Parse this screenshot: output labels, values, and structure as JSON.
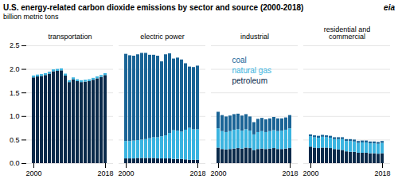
{
  "chart_data": {
    "type": "bar",
    "stacked": true,
    "title": "U.S. energy-related carbon dioxide emissions by sector and source (2000-2018)",
    "ylabel": "billion metric tons",
    "annotations": [
      "eia"
    ],
    "categories": [
      "2000",
      null,
      null,
      null,
      null,
      null,
      null,
      null,
      null,
      null,
      null,
      null,
      null,
      null,
      null,
      null,
      null,
      null,
      "2018"
    ],
    "ylim": [
      0,
      2.5
    ],
    "yticks": [
      {
        "value": 0.0,
        "label": "0.0"
      },
      0.5,
      {
        "value": 1.0,
        "label": "1.0"
      },
      1.5,
      {
        "value": 2.0,
        "label": "2.0"
      },
      2.5
    ],
    "grid": true,
    "panels": [
      {
        "title": "transportation",
        "series": [
          {
            "name": "petroleum",
            "color": "#0a2a4a",
            "values": [
              1.82,
              1.84,
              1.85,
              1.87,
              1.9,
              1.95,
              1.96,
              1.97,
              1.86,
              1.72,
              1.78,
              1.74,
              1.72,
              1.73,
              1.74,
              1.77,
              1.8,
              1.83,
              1.87
            ]
          },
          {
            "name": "natural gas",
            "color": "#3ab4e0",
            "values": [
              0.04,
              0.04,
              0.04,
              0.04,
              0.04,
              0.04,
              0.04,
              0.04,
              0.04,
              0.04,
              0.04,
              0.04,
              0.04,
              0.04,
              0.04,
              0.04,
              0.04,
              0.04,
              0.04
            ]
          },
          {
            "name": "coal",
            "color": "#1a6496",
            "values": [
              0.0,
              0.0,
              0.0,
              0.0,
              0.0,
              0.0,
              0.0,
              0.0,
              0.0,
              0.0,
              0.0,
              0.0,
              0.0,
              0.0,
              0.0,
              0.0,
              0.0,
              0.0,
              0.0
            ]
          }
        ]
      },
      {
        "title": "electric power",
        "series": [
          {
            "name": "petroleum",
            "color": "#0a2a4a",
            "values": [
              0.1,
              0.1,
              0.1,
              0.11,
              0.11,
              0.11,
              0.11,
              0.11,
              0.1,
              0.1,
              0.1,
              0.1,
              0.09,
              0.09,
              0.09,
              0.08,
              0.07,
              0.07,
              0.07
            ]
          },
          {
            "name": "natural gas",
            "color": "#3ab4e0",
            "values": [
              0.37,
              0.37,
              0.38,
              0.38,
              0.39,
              0.4,
              0.42,
              0.44,
              0.45,
              0.47,
              0.49,
              0.54,
              0.61,
              0.6,
              0.58,
              0.63,
              0.68,
              0.65,
              0.65
            ]
          },
          {
            "name": "coal",
            "color": "#1a6496",
            "values": [
              1.85,
              1.82,
              1.8,
              1.82,
              1.84,
              1.83,
              1.77,
              1.75,
              1.73,
              1.59,
              1.72,
              1.69,
              1.52,
              1.55,
              1.53,
              1.41,
              1.3,
              1.32,
              1.35
            ]
          }
        ]
      },
      {
        "title": "industrial",
        "series": [
          {
            "name": "petroleum",
            "color": "#0a2a4a",
            "values": [
              0.33,
              0.3,
              0.29,
              0.3,
              0.31,
              0.32,
              0.31,
              0.33,
              0.32,
              0.28,
              0.3,
              0.31,
              0.3,
              0.31,
              0.32,
              0.3,
              0.3,
              0.31,
              0.32
            ]
          },
          {
            "name": "natural gas",
            "color": "#3ab4e0",
            "values": [
              0.41,
              0.38,
              0.37,
              0.38,
              0.4,
              0.4,
              0.38,
              0.39,
              0.37,
              0.33,
              0.36,
              0.37,
              0.36,
              0.37,
              0.38,
              0.38,
              0.39,
              0.4,
              0.42
            ]
          },
          {
            "name": "coal",
            "color": "#1a6496",
            "values": [
              0.35,
              0.34,
              0.33,
              0.33,
              0.33,
              0.33,
              0.32,
              0.32,
              0.3,
              0.26,
              0.28,
              0.28,
              0.27,
              0.27,
              0.28,
              0.27,
              0.26,
              0.26,
              0.28
            ]
          }
        ]
      },
      {
        "title": "residential and\ncommercial",
        "series": [
          {
            "name": "petroleum",
            "color": "#0a2a4a",
            "values": [
              0.35,
              0.33,
              0.32,
              0.33,
              0.33,
              0.32,
              0.3,
              0.29,
              0.28,
              0.25,
              0.24,
              0.24,
              0.22,
              0.22,
              0.22,
              0.21,
              0.21,
              0.2,
              0.21
            ]
          },
          {
            "name": "natural gas",
            "color": "#3ab4e0",
            "values": [
              0.22,
              0.22,
              0.22,
              0.23,
              0.22,
              0.22,
              0.21,
              0.22,
              0.23,
              0.22,
              0.23,
              0.22,
              0.21,
              0.22,
              0.22,
              0.21,
              0.21,
              0.21,
              0.22
            ]
          },
          {
            "name": "coal",
            "color": "#1a6496",
            "values": [
              0.04,
              0.04,
              0.04,
              0.04,
              0.04,
              0.04,
              0.04,
              0.04,
              0.04,
              0.04,
              0.04,
              0.04,
              0.04,
              0.04,
              0.04,
              0.04,
              0.04,
              0.04,
              0.04
            ]
          }
        ]
      }
    ]
  }
}
